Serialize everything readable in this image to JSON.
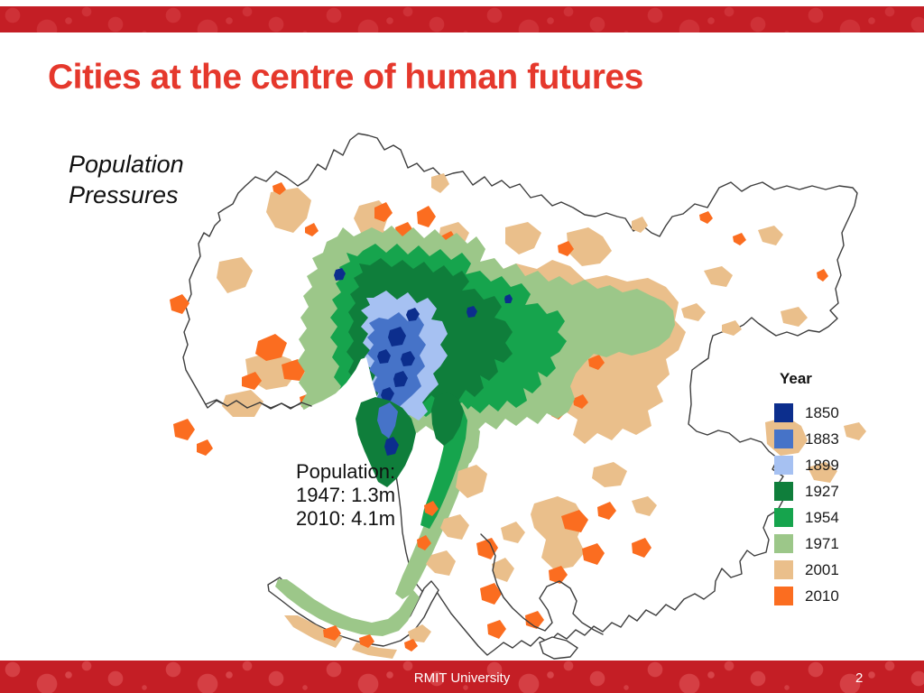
{
  "theme": {
    "bar_red": "#c41e25",
    "bar_dot_red": "#d8454a",
    "title_red": "#e5382c",
    "boundary_gray": "#3d3d3d"
  },
  "title": "Cities at the centre of human futures",
  "subtitle": {
    "line1": "Population",
    "line2": "Pressures"
  },
  "map": {
    "annotation": {
      "line1": "Population:",
      "line2": "1947: 1.3m",
      "line3": "2010: 4.1m"
    },
    "legend": {
      "title": "Year",
      "items": [
        {
          "year": "1850",
          "color": "#0c2e8d"
        },
        {
          "year": "1883",
          "color": "#4673c8"
        },
        {
          "year": "1899",
          "color": "#a6c1f2"
        },
        {
          "year": "1927",
          "color": "#0f7e3b"
        },
        {
          "year": "1954",
          "color": "#16a44d"
        },
        {
          "year": "1971",
          "color": "#9cc789"
        },
        {
          "year": "2001",
          "color": "#eabf8b"
        },
        {
          "year": "2010",
          "color": "#fb6d20"
        }
      ]
    }
  },
  "footer": {
    "institution": "RMIT University",
    "page_number": "2"
  }
}
